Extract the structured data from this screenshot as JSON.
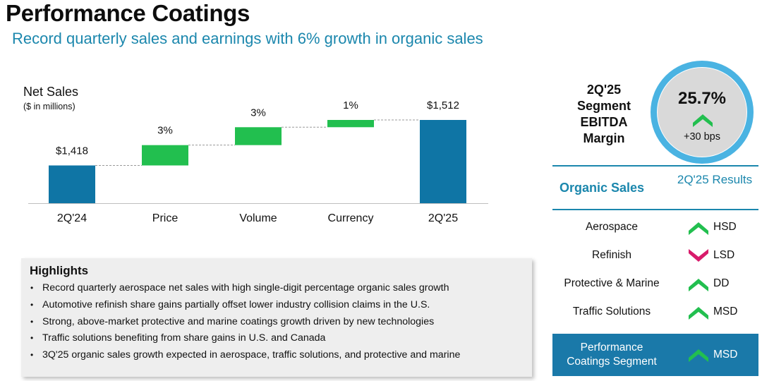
{
  "page": {
    "title": "Performance Coatings",
    "subtitle": "Record quarterly sales and earnings with 6% growth in organic sales"
  },
  "chart_data": {
    "type": "bar",
    "subtype": "waterfall",
    "title": "Net Sales",
    "subtitle": "($ in millions)",
    "categories": [
      "2Q'24",
      "Price",
      "Volume",
      "Currency",
      "2Q'25"
    ],
    "bars": [
      {
        "category": "2Q'24",
        "kind": "total",
        "start": 0,
        "end": 1418,
        "label": "$1,418"
      },
      {
        "category": "Price",
        "kind": "increase",
        "start": 1418,
        "end": 1460,
        "label": "3%"
      },
      {
        "category": "Volume",
        "kind": "increase",
        "start": 1460,
        "end": 1497,
        "label": "3%"
      },
      {
        "category": "Currency",
        "kind": "increase",
        "start": 1497,
        "end": 1512,
        "label": "1%"
      },
      {
        "category": "2Q'25",
        "kind": "total",
        "start": 0,
        "end": 1512,
        "label": "$1,512"
      }
    ],
    "display_range": [
      1340,
      1530
    ],
    "colors": {
      "total": "#0f75a5",
      "increase": "#22bf4f",
      "connector": "#9a9a9a",
      "axis": "#bfbfbf"
    },
    "legend": "none",
    "grid": false
  },
  "highlights": {
    "title": "Highlights",
    "items": [
      "Record quarterly aerospace net sales with high single-digit percentage organic sales growth",
      "Automotive refinish share gains partially offset lower industry collision claims in the U.S.",
      "Strong, above-market protective and marine coatings growth driven by new technologies",
      "Traffic solutions benefiting from share gains in U.S. and Canada",
      "3Q'25 organic sales growth expected in aerospace, traffic solutions, and protective and marine"
    ],
    "bullet": "•"
  },
  "ebitda": {
    "label": "2Q'25 Segment EBITDA Margin",
    "value": "25.7%",
    "change": "+30 bps",
    "direction": "up",
    "ring_color": "#4ab3e2",
    "fill_color": "#d9d9d9"
  },
  "organic_sales": {
    "header": "Organic Sales",
    "results_header": "2Q'25 Results",
    "rows": [
      {
        "segment": "Aerospace",
        "direction": "up",
        "result": "HSD"
      },
      {
        "segment": "Refinish",
        "direction": "down",
        "result": "LSD"
      },
      {
        "segment": "Protective & Marine",
        "direction": "up",
        "result": "DD"
      },
      {
        "segment": "Traffic Solutions",
        "direction": "up",
        "result": "MSD"
      }
    ],
    "total": {
      "segment": "Performance\nCoatings Segment",
      "direction": "up",
      "result": "MSD"
    },
    "colors": {
      "up": "#22bf4f",
      "down": "#d81b6b",
      "accent": "#1b87ad",
      "total_bg": "#1a79a9"
    }
  }
}
